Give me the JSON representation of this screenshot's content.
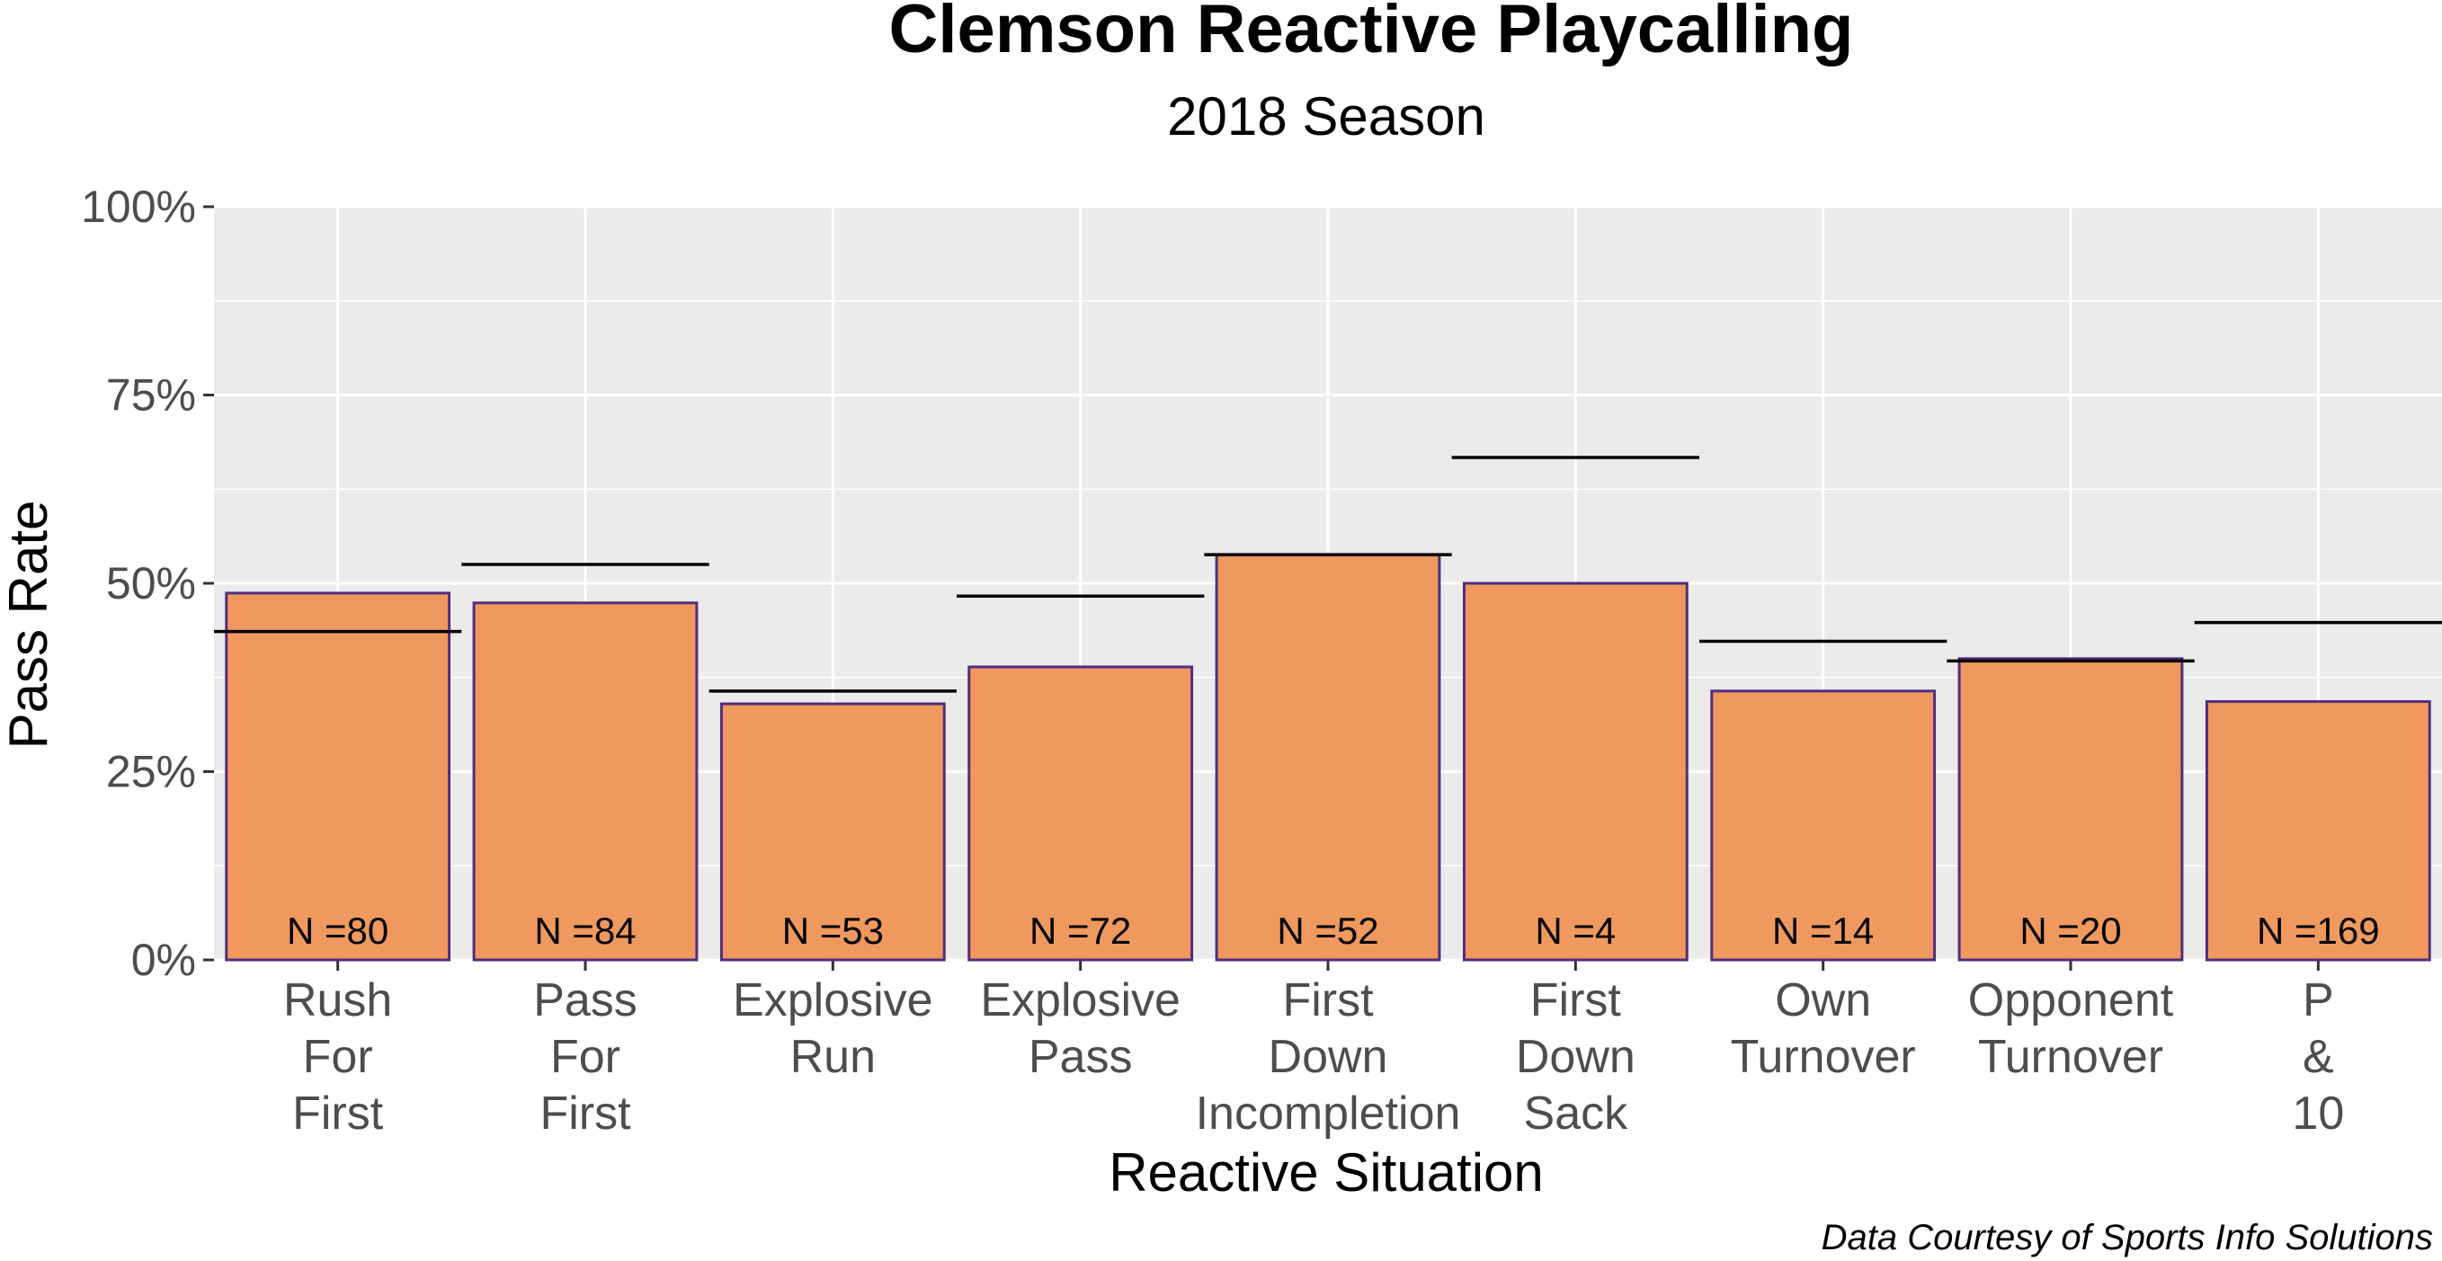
{
  "chart_data": {
    "type": "bar",
    "title": "Clemson Reactive Playcalling",
    "subtitle": "2018 Season",
    "xlabel": "Reactive Situation",
    "ylabel": "Pass Rate",
    "caption": "Data Courtesy of Sports Info Solutions",
    "ylim": [
      0,
      1
    ],
    "yticks": [
      0,
      0.25,
      0.5,
      0.75,
      1.0
    ],
    "ytick_labels": [
      "0%",
      "25%",
      "50%",
      "75%",
      "100%"
    ],
    "grid": true,
    "categories": [
      [
        "Rush",
        "For",
        "First"
      ],
      [
        "Pass",
        "For",
        "First"
      ],
      [
        "Explosive",
        "Run"
      ],
      [
        "Explosive",
        "Pass"
      ],
      [
        "First",
        "Down",
        "Incompletion"
      ],
      [
        "First",
        "Down",
        "Sack"
      ],
      [
        "Own",
        "Turnover"
      ],
      [
        "Opponent",
        "Turnover"
      ],
      [
        "P",
        "&",
        "10"
      ]
    ],
    "values": [
      0.487,
      0.474,
      0.34,
      0.389,
      0.538,
      0.5,
      0.357,
      0.4,
      0.343
    ],
    "reference_values": [
      0.436,
      0.525,
      0.357,
      0.483,
      0.538,
      0.667,
      0.423,
      0.397,
      0.448
    ],
    "n_labels": [
      "N =80",
      "N =84",
      "N =53",
      "N =72",
      "N =52",
      "N =4",
      "N =14",
      "N =20",
      "N =169"
    ],
    "colors": {
      "bar_fill": "#f0995e",
      "bar_stroke": "#522d80",
      "panel_bg": "#ebebeb",
      "grid": "#ffffff",
      "reference_line": "#000000"
    }
  }
}
